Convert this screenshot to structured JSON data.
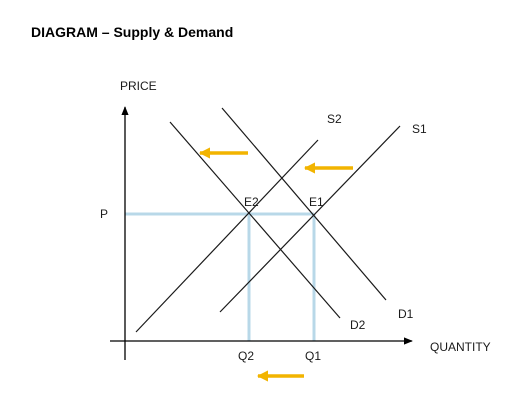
{
  "title": "DIAGRAM – Supply & Demand",
  "axes": {
    "y_label": "PRICE",
    "x_label": "QUANTITY"
  },
  "labels": {
    "price": "P",
    "q1": "Q1",
    "q2": "Q2",
    "e1": "E1",
    "e2": "E2",
    "s1": "S1",
    "s2": "S2",
    "d1": "D1",
    "d2": "D2"
  },
  "colors": {
    "curves": "#1a1a1a",
    "axes": "#000000",
    "guides": "#b8d8e8",
    "arrows": "#f2b400"
  },
  "arrows": [
    {
      "name": "shift-arrow-demand",
      "direction": "left"
    },
    {
      "name": "shift-arrow-supply",
      "direction": "left"
    },
    {
      "name": "shift-arrow-quantity",
      "direction": "left"
    }
  ]
}
